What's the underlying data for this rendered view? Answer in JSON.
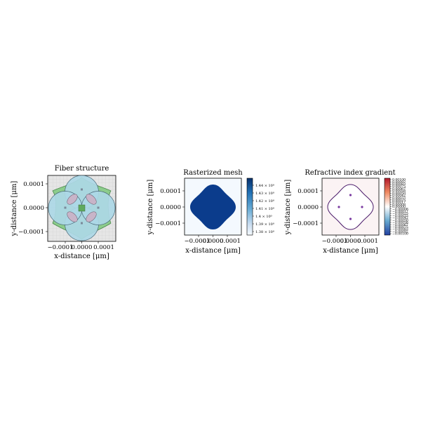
{
  "chart_data": [
    {
      "type": "diagram",
      "title": "Fiber structure",
      "xlabel": "x-distance [μm]",
      "ylabel": "y-distance [μm]",
      "xticks": [
        "−0.0001",
        "0.0000",
        "0.0001"
      ],
      "yticks": [
        "0.0001",
        "0.0000",
        "−0.0001"
      ],
      "xlim": [
        -0.00021,
        0.00021
      ],
      "ylim": [
        -0.00021,
        0.00021
      ],
      "grid": true,
      "colors": {
        "background": "#e6e6e6",
        "cladding": "#7fbf7f",
        "core": "#add8e6",
        "overlap": "#c8b4c8",
        "center": "#5faa5f"
      }
    },
    {
      "type": "heatmap",
      "title": "Rasterized mesh",
      "xlabel": "x-distance [μm]",
      "ylabel": "y-distance [μm]",
      "xticks": [
        "−0.0001",
        "0.0000",
        "0.0001"
      ],
      "yticks": [
        "0.0001",
        "0.0000",
        "−0.0001"
      ],
      "colorbar_ticks": [
        "1.44 × 10⁰",
        "1.43 × 10⁰",
        "1.42 × 10⁰",
        "1.41 × 10⁰",
        "1.4 × 10⁰",
        "1.39 × 10⁰",
        "1.38 × 10⁰"
      ],
      "colorbar_range": [
        1.375,
        1.445
      ],
      "colors": {
        "high": "#0b3c8c",
        "low": "#f4f9fe"
      }
    },
    {
      "type": "heatmap",
      "title": "Refractive index gradient",
      "xlabel": "x-distance [μm]",
      "ylabel": "y-distance [μm]",
      "xticks": [
        "−0.0001",
        "0.0000",
        "0.0001"
      ],
      "yticks": [
        "0.0001",
        "0.0000",
        "−0.0001"
      ],
      "colorbar_ticks": [
        "0.00100",
        "0.00092",
        "0.00083",
        "0.00075",
        "0.00067",
        "0.00058",
        "0.00050",
        "0.00042",
        "0.00033",
        "0.00025",
        "0.00017",
        "0.00008",
        "0.00000",
        "−0.00008",
        "−0.00017",
        "−0.00025",
        "−0.00033",
        "−0.00042",
        "−0.00050",
        "−0.00058",
        "−0.00067",
        "−0.00075",
        "−0.00083",
        "−0.00092",
        "−0.00100"
      ],
      "colorbar_range": [
        -0.001,
        0.001
      ],
      "colors": {
        "high": "#b2182b",
        "mid": "#ffffff",
        "low": "#2140a0"
      }
    }
  ]
}
